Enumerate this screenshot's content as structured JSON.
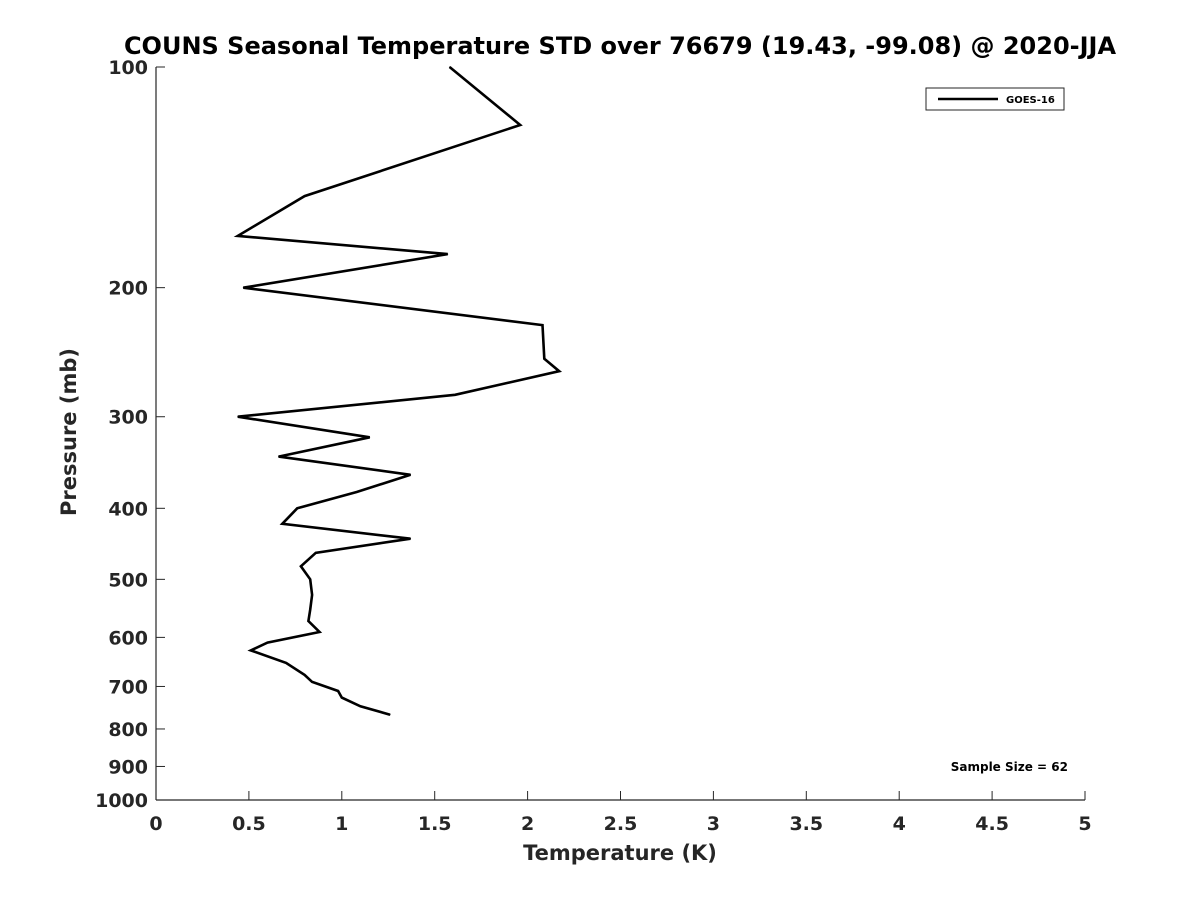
{
  "chart_data": {
    "type": "line",
    "title": "COUNS Seasonal Temperature STD over 76679 (19.43, -99.08) @ 2020-JJA",
    "xlabel": "Temperature (K)",
    "ylabel": "Pressure (mb)",
    "xlim": [
      0,
      5
    ],
    "ylim": [
      100,
      1000
    ],
    "y_scale": "log",
    "y_reversed": true,
    "x_ticks": [
      "0",
      "0.5",
      "1",
      "1.5",
      "2",
      "2.5",
      "3",
      "3.5",
      "4",
      "4.5",
      "5"
    ],
    "y_ticks": [
      "100",
      "200",
      "300",
      "400",
      "500",
      "600",
      "700",
      "800",
      "900",
      "1000"
    ],
    "grid": false,
    "legend_position": "top-right",
    "annotation": "Sample Size = 62",
    "series": [
      {
        "name": "GOES-16",
        "color": "#000000",
        "points": [
          {
            "x": 1.58,
            "y": 100
          },
          {
            "x": 1.96,
            "y": 120
          },
          {
            "x": 0.8,
            "y": 150
          },
          {
            "x": 0.44,
            "y": 170
          },
          {
            "x": 1.57,
            "y": 180
          },
          {
            "x": 0.47,
            "y": 200
          },
          {
            "x": 2.08,
            "y": 225
          },
          {
            "x": 2.09,
            "y": 250
          },
          {
            "x": 2.17,
            "y": 260
          },
          {
            "x": 1.61,
            "y": 280
          },
          {
            "x": 0.44,
            "y": 300
          },
          {
            "x": 1.15,
            "y": 320
          },
          {
            "x": 0.66,
            "y": 340
          },
          {
            "x": 1.37,
            "y": 360
          },
          {
            "x": 1.08,
            "y": 380
          },
          {
            "x": 0.76,
            "y": 400
          },
          {
            "x": 0.68,
            "y": 420
          },
          {
            "x": 1.37,
            "y": 440
          },
          {
            "x": 0.86,
            "y": 460
          },
          {
            "x": 0.78,
            "y": 480
          },
          {
            "x": 0.83,
            "y": 500
          },
          {
            "x": 0.84,
            "y": 525
          },
          {
            "x": 0.83,
            "y": 550
          },
          {
            "x": 0.82,
            "y": 570
          },
          {
            "x": 0.88,
            "y": 590
          },
          {
            "x": 0.6,
            "y": 610
          },
          {
            "x": 0.51,
            "y": 625
          },
          {
            "x": 0.7,
            "y": 650
          },
          {
            "x": 0.8,
            "y": 675
          },
          {
            "x": 0.84,
            "y": 690
          },
          {
            "x": 0.98,
            "y": 710
          },
          {
            "x": 1.0,
            "y": 725
          },
          {
            "x": 1.1,
            "y": 745
          },
          {
            "x": 1.26,
            "y": 765
          }
        ]
      }
    ]
  }
}
